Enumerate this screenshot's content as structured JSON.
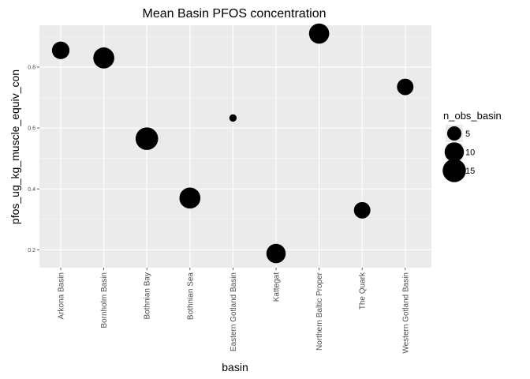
{
  "chart_data": {
    "type": "scatter",
    "title": "Mean Basin PFOS concentration",
    "xlabel": "basin",
    "ylabel": "pfos_ug_kg_muscle_equiv_con",
    "categories": [
      "Arkona Basin",
      "Bornholm Basin",
      "Bothnian Bay",
      "Bothnian Sea",
      "Eastern Gotland Basin",
      "Kattegat",
      "Northern Baltic Proper",
      "The Quark",
      "Western Gotland Basin"
    ],
    "values": [
      0.855,
      0.83,
      0.565,
      0.37,
      0.633,
      0.188,
      0.91,
      0.33,
      0.735
    ],
    "sizes": [
      8,
      12,
      14,
      12,
      1,
      10,
      11,
      7,
      7
    ],
    "ylim": [
      0.15,
      0.95
    ],
    "yticks": [
      0.2,
      0.4,
      0.6,
      0.8
    ],
    "ytick_labels": [
      "0.2",
      "0.4",
      "0.6",
      "0.8"
    ],
    "grid": true,
    "legend": {
      "title": "n_obs_basin",
      "placement": "right",
      "entries": [
        {
          "label": "5",
          "value": 5
        },
        {
          "label": "10",
          "value": 10
        },
        {
          "label": "15",
          "value": 15
        }
      ]
    },
    "colors": {
      "panel": "#ebebeb",
      "grid": "#ffffff",
      "point": "#000000"
    }
  }
}
